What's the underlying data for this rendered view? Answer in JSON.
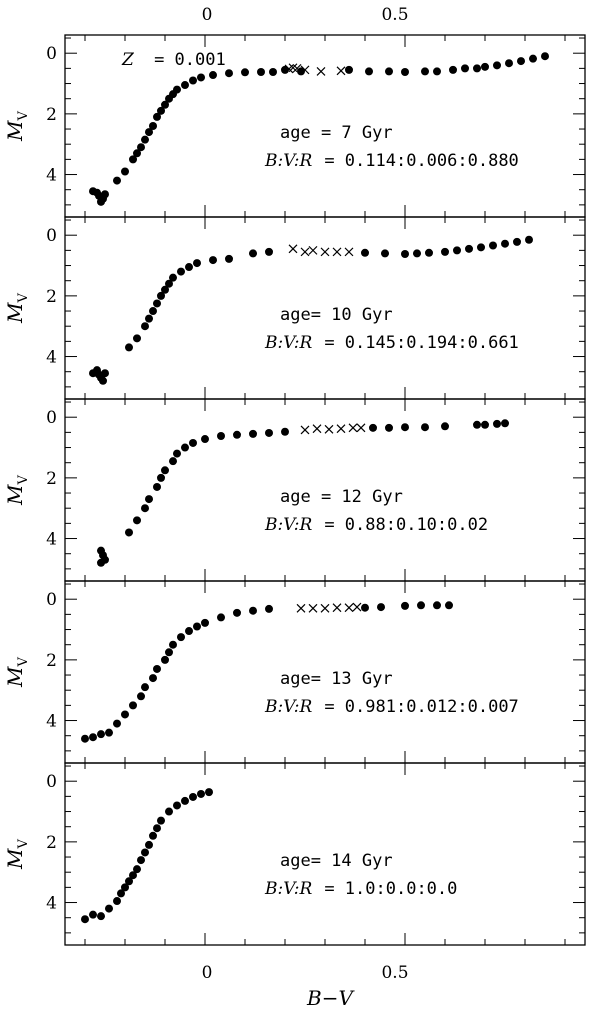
{
  "chart_data": {
    "type": "scatter",
    "xlabel": "B−V",
    "ylabel": "M",
    "ylabel_sub": "V",
    "xlim": [
      -0.35,
      0.95
    ],
    "ylim": [
      5.4,
      -0.6
    ],
    "xticks_major": [
      0,
      0.5
    ],
    "xtick_labels": [
      "0",
      "0.5"
    ],
    "yticks_major": [
      0,
      2,
      4
    ],
    "ytick_labels": [
      "0",
      "2",
      "4"
    ],
    "top_label": {
      "text": "= 0.001",
      "italic_prefix": "Z"
    },
    "panels": [
      {
        "age_label": "age = 7 Gyr",
        "ratio_prefix": "B:V:R",
        "ratio_value": "= 0.114:0.006:0.880",
        "rgb_points": [
          [
            -0.28,
            4.55
          ],
          [
            -0.27,
            4.6
          ],
          [
            -0.265,
            4.7
          ],
          [
            -0.26,
            4.75
          ],
          [
            -0.255,
            4.8
          ],
          [
            -0.25,
            4.65
          ],
          [
            -0.26,
            4.9
          ],
          [
            -0.22,
            4.2
          ],
          [
            -0.2,
            3.9
          ],
          [
            -0.18,
            3.5
          ],
          [
            -0.17,
            3.3
          ],
          [
            -0.16,
            3.1
          ],
          [
            -0.15,
            2.85
          ],
          [
            -0.14,
            2.6
          ],
          [
            -0.13,
            2.4
          ],
          [
            -0.12,
            2.1
          ],
          [
            -0.11,
            1.9
          ],
          [
            -0.1,
            1.7
          ],
          [
            -0.09,
            1.5
          ],
          [
            -0.08,
            1.35
          ],
          [
            -0.07,
            1.2
          ],
          [
            -0.05,
            1.05
          ],
          [
            -0.03,
            0.9
          ],
          [
            -0.01,
            0.8
          ],
          [
            0.02,
            0.72
          ],
          [
            0.06,
            0.66
          ],
          [
            0.1,
            0.63
          ],
          [
            0.14,
            0.62
          ],
          [
            0.17,
            0.62
          ]
        ],
        "bhb_points": [
          [
            0.2,
            0.55
          ],
          [
            0.24,
            0.6
          ],
          [
            0.36,
            0.55
          ],
          [
            0.41,
            0.6
          ],
          [
            0.46,
            0.6
          ],
          [
            0.5,
            0.62
          ],
          [
            0.55,
            0.6
          ],
          [
            0.58,
            0.6
          ],
          [
            0.62,
            0.55
          ],
          [
            0.65,
            0.5
          ],
          [
            0.68,
            0.5
          ],
          [
            0.7,
            0.45
          ],
          [
            0.73,
            0.4
          ],
          [
            0.76,
            0.33
          ],
          [
            0.79,
            0.26
          ],
          [
            0.82,
            0.18
          ],
          [
            0.85,
            0.1
          ]
        ],
        "var_points": [
          [
            0.21,
            0.52
          ],
          [
            0.22,
            0.48
          ],
          [
            0.23,
            0.5
          ],
          [
            0.25,
            0.55
          ],
          [
            0.29,
            0.6
          ],
          [
            0.34,
            0.58
          ]
        ]
      },
      {
        "age_label": "age= 10 Gyr",
        "ratio_prefix": "B:V:R",
        "ratio_value": "= 0.145:0.194:0.661",
        "rgb_points": [
          [
            -0.28,
            4.55
          ],
          [
            -0.27,
            4.45
          ],
          [
            -0.265,
            4.6
          ],
          [
            -0.26,
            4.7
          ],
          [
            -0.255,
            4.8
          ],
          [
            -0.25,
            4.55
          ],
          [
            -0.19,
            3.7
          ],
          [
            -0.17,
            3.4
          ],
          [
            -0.15,
            3.0
          ],
          [
            -0.14,
            2.75
          ],
          [
            -0.13,
            2.5
          ],
          [
            -0.12,
            2.25
          ],
          [
            -0.11,
            2.0
          ],
          [
            -0.1,
            1.8
          ],
          [
            -0.09,
            1.6
          ],
          [
            -0.08,
            1.4
          ],
          [
            -0.06,
            1.2
          ],
          [
            -0.04,
            1.05
          ],
          [
            -0.02,
            0.92
          ],
          [
            0.02,
            0.82
          ],
          [
            0.06,
            0.78
          ],
          [
            0.12,
            0.6
          ],
          [
            0.16,
            0.55
          ]
        ],
        "bhb_points": [
          [
            0.4,
            0.58
          ],
          [
            0.45,
            0.6
          ],
          [
            0.5,
            0.62
          ],
          [
            0.53,
            0.6
          ],
          [
            0.56,
            0.58
          ],
          [
            0.6,
            0.55
          ],
          [
            0.63,
            0.5
          ],
          [
            0.66,
            0.45
          ],
          [
            0.69,
            0.4
          ],
          [
            0.72,
            0.34
          ],
          [
            0.75,
            0.28
          ],
          [
            0.78,
            0.22
          ],
          [
            0.81,
            0.15
          ]
        ],
        "var_points": [
          [
            0.22,
            0.45
          ],
          [
            0.25,
            0.55
          ],
          [
            0.27,
            0.5
          ],
          [
            0.3,
            0.55
          ],
          [
            0.33,
            0.55
          ],
          [
            0.36,
            0.55
          ]
        ]
      },
      {
        "age_label": "age = 12 Gyr",
        "ratio_prefix": "B:V:R",
        "ratio_value": "= 0.88:0.10:0.02",
        "rgb_points": [
          [
            -0.26,
            4.4
          ],
          [
            -0.255,
            4.55
          ],
          [
            -0.25,
            4.7
          ],
          [
            -0.26,
            4.8
          ],
          [
            -0.19,
            3.8
          ],
          [
            -0.17,
            3.4
          ],
          [
            -0.15,
            3.0
          ],
          [
            -0.14,
            2.7
          ],
          [
            -0.12,
            2.3
          ],
          [
            -0.11,
            2.0
          ],
          [
            -0.1,
            1.75
          ],
          [
            -0.08,
            1.45
          ],
          [
            -0.07,
            1.2
          ],
          [
            -0.05,
            1.0
          ],
          [
            -0.03,
            0.85
          ],
          [
            0.0,
            0.72
          ],
          [
            0.04,
            0.62
          ],
          [
            0.08,
            0.58
          ],
          [
            0.12,
            0.55
          ],
          [
            0.16,
            0.52
          ],
          [
            0.2,
            0.48
          ]
        ],
        "bhb_points": [
          [
            0.42,
            0.35
          ],
          [
            0.46,
            0.35
          ],
          [
            0.5,
            0.33
          ],
          [
            0.55,
            0.33
          ],
          [
            0.6,
            0.3
          ],
          [
            0.68,
            0.25
          ],
          [
            0.7,
            0.25
          ],
          [
            0.73,
            0.22
          ],
          [
            0.75,
            0.2
          ]
        ],
        "var_points": [
          [
            0.25,
            0.42
          ],
          [
            0.28,
            0.38
          ],
          [
            0.31,
            0.4
          ],
          [
            0.34,
            0.38
          ],
          [
            0.37,
            0.35
          ],
          [
            0.39,
            0.35
          ]
        ]
      },
      {
        "age_label": "age= 13 Gyr",
        "ratio_prefix": "B:V:R",
        "ratio_value": "= 0.981:0.012:0.007",
        "rgb_points": [
          [
            -0.3,
            4.6
          ],
          [
            -0.28,
            4.55
          ],
          [
            -0.26,
            4.45
          ],
          [
            -0.24,
            4.4
          ],
          [
            -0.22,
            4.1
          ],
          [
            -0.2,
            3.8
          ],
          [
            -0.18,
            3.5
          ],
          [
            -0.16,
            3.2
          ],
          [
            -0.15,
            2.9
          ],
          [
            -0.13,
            2.6
          ],
          [
            -0.12,
            2.3
          ],
          [
            -0.1,
            2.0
          ],
          [
            -0.09,
            1.75
          ],
          [
            -0.08,
            1.5
          ],
          [
            -0.06,
            1.25
          ],
          [
            -0.04,
            1.05
          ],
          [
            -0.02,
            0.9
          ],
          [
            0.0,
            0.78
          ],
          [
            0.04,
            0.6
          ],
          [
            0.08,
            0.45
          ],
          [
            0.12,
            0.38
          ],
          [
            0.16,
            0.32
          ]
        ],
        "bhb_points": [
          [
            0.4,
            0.28
          ],
          [
            0.44,
            0.26
          ],
          [
            0.5,
            0.22
          ],
          [
            0.54,
            0.2
          ],
          [
            0.58,
            0.2
          ],
          [
            0.61,
            0.2
          ]
        ],
        "var_points": [
          [
            0.24,
            0.3
          ],
          [
            0.27,
            0.3
          ],
          [
            0.3,
            0.3
          ],
          [
            0.33,
            0.28
          ],
          [
            0.36,
            0.28
          ],
          [
            0.38,
            0.26
          ]
        ]
      },
      {
        "age_label": "age= 14 Gyr",
        "ratio_prefix": "B:V:R",
        "ratio_value": "= 1.0:0.0:0.0",
        "rgb_points": [
          [
            -0.3,
            4.55
          ],
          [
            -0.28,
            4.4
          ],
          [
            -0.26,
            4.45
          ],
          [
            -0.24,
            4.2
          ],
          [
            -0.22,
            3.95
          ],
          [
            -0.21,
            3.7
          ],
          [
            -0.2,
            3.5
          ],
          [
            -0.19,
            3.3
          ],
          [
            -0.18,
            3.1
          ],
          [
            -0.17,
            2.9
          ],
          [
            -0.16,
            2.6
          ],
          [
            -0.15,
            2.35
          ],
          [
            -0.14,
            2.1
          ],
          [
            -0.13,
            1.8
          ],
          [
            -0.12,
            1.55
          ],
          [
            -0.11,
            1.3
          ],
          [
            -0.09,
            1.0
          ],
          [
            -0.07,
            0.8
          ],
          [
            -0.05,
            0.65
          ],
          [
            -0.03,
            0.52
          ],
          [
            -0.01,
            0.42
          ],
          [
            0.01,
            0.36
          ]
        ],
        "bhb_points": [],
        "var_points": []
      }
    ]
  }
}
